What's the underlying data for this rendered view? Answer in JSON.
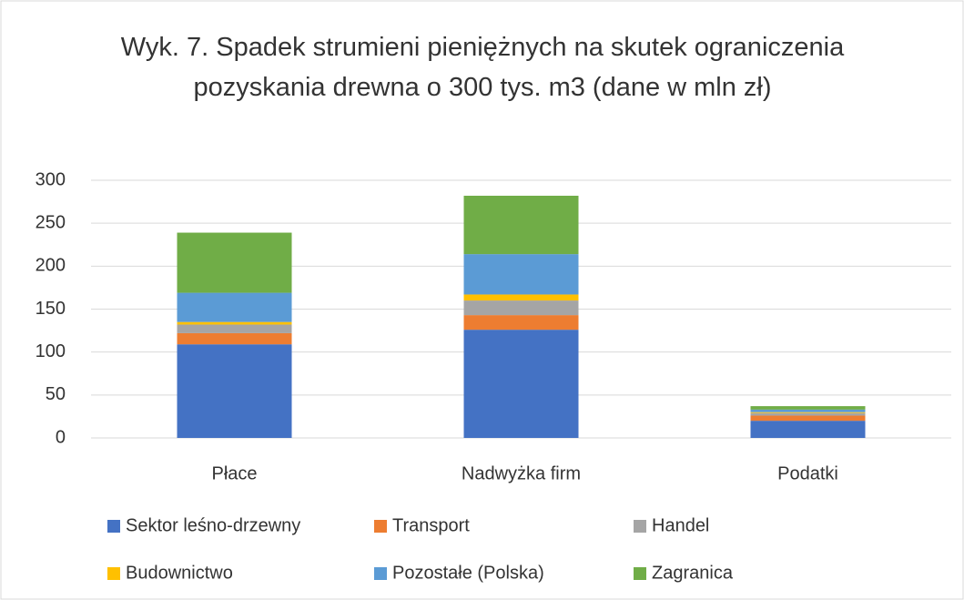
{
  "chart_data": {
    "type": "stacked_bar",
    "title": "Wyk. 7. Spadek strumieni pieniężnych na skutek ograniczenia pozyskania drewna o 300 tys. m3 (dane w mln zł)",
    "categories": [
      "Płace",
      "Nadwyżka firm",
      "Podatki"
    ],
    "series": [
      {
        "name": "Sektor leśno-drzewny",
        "color": "#4472c4",
        "values": [
          109,
          126,
          20
        ]
      },
      {
        "name": "Transport",
        "color": "#ed7d31",
        "values": [
          13,
          17,
          6
        ]
      },
      {
        "name": "Handel",
        "color": "#a5a5a5",
        "values": [
          10,
          17,
          3
        ]
      },
      {
        "name": "Budownictwo",
        "color": "#ffc000",
        "values": [
          3,
          7,
          1
        ]
      },
      {
        "name": "Pozostałe (Polska)",
        "color": "#5b9bd5",
        "values": [
          34,
          47,
          3
        ]
      },
      {
        "name": "Zagranica",
        "color": "#70ad47",
        "values": [
          70,
          68,
          4
        ]
      }
    ],
    "ylim": [
      0,
      300
    ],
    "yticks": [
      0,
      50,
      100,
      150,
      200,
      250,
      300
    ],
    "grid": true,
    "legend": "bottom"
  }
}
